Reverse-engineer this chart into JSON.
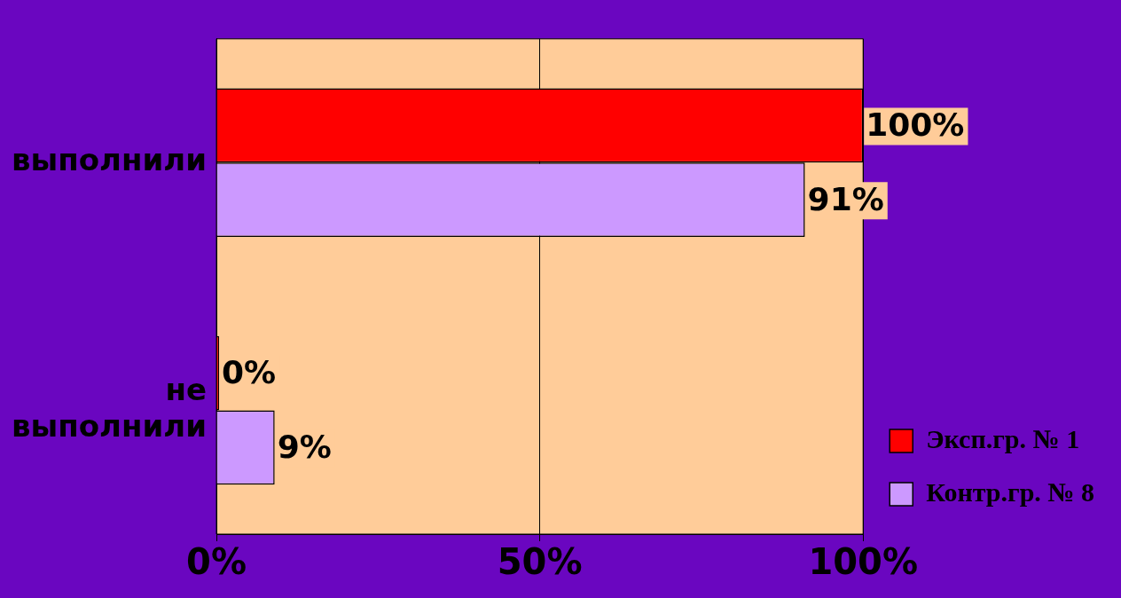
{
  "chart_data": {
    "type": "bar",
    "orientation": "horizontal",
    "categories": [
      "выполнили",
      "не выполнили"
    ],
    "series": [
      {
        "name": "Эксп.гр. № 1",
        "color": "#ff0000",
        "values": [
          100,
          0
        ],
        "value_labels": [
          "100%",
          "0%"
        ]
      },
      {
        "name": "Контр.гр. № 8",
        "color": "#cc99ff",
        "values": [
          91,
          9
        ],
        "value_labels": [
          "91%",
          "9%"
        ]
      }
    ],
    "xlim": [
      0,
      100
    ],
    "xticks": [
      {
        "value": 0,
        "label": "0%"
      },
      {
        "value": 50,
        "label": "50%"
      },
      {
        "value": 100,
        "label": "100%"
      }
    ],
    "grid": "x",
    "legend": "bottom right"
  }
}
